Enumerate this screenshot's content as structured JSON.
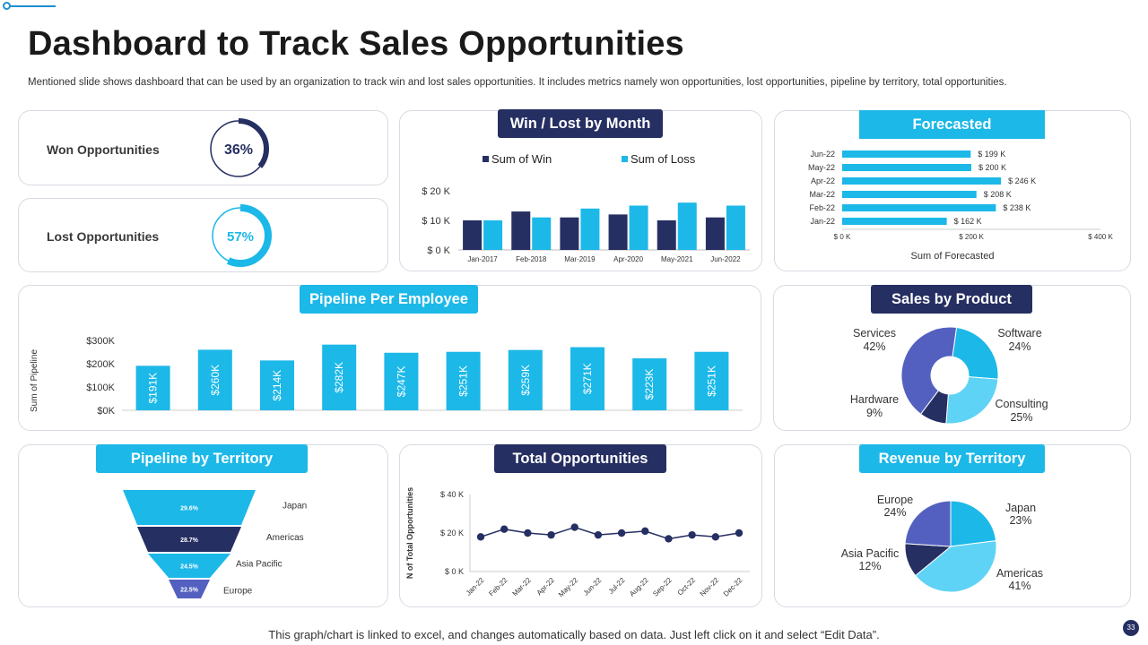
{
  "page": {
    "title": "Dashboard to Track Sales Opportunities",
    "subtitle": "Mentioned slide shows dashboard that can be used by an organization to track win and lost sales opportunities. It includes metrics namely won opportunities, lost opportunities, pipeline by territory, total opportunities.",
    "footer": "This graph/chart is linked to excel, and changes automatically based on data. Just left click on it and select “Edit Data”.",
    "page_number": "33"
  },
  "colors": {
    "navy": "#262f62",
    "cyan": "#1cb8e8",
    "light_cyan": "#5fd3f5",
    "slate": "#5360c0"
  },
  "kpis": {
    "won": {
      "label": "Won Opportunities",
      "value": "36%",
      "fraction": 0.36
    },
    "lost": {
      "label": "Lost Opportunities",
      "value": "57%",
      "fraction": 0.57
    }
  },
  "chart_data": [
    {
      "id": "win-loss",
      "type": "bar",
      "title": "Win / Lost by Month",
      "categories": [
        "Jan-2017",
        "Feb-2018",
        "Mar-2019",
        "Apr-2020",
        "May-2021",
        "Jun-2022"
      ],
      "series": [
        {
          "name": "Sum of Win",
          "values": [
            10,
            13,
            11,
            12,
            10,
            11
          ]
        },
        {
          "name": "Sum of Loss",
          "values": [
            10,
            11,
            14,
            15,
            16,
            15
          ]
        }
      ],
      "ylim": [
        0,
        20
      ],
      "yticks": [
        "$ 0 K",
        "$ 10 K",
        "$ 20 K"
      ],
      "legend": "top"
    },
    {
      "id": "forecasted",
      "type": "bar-horizontal",
      "title": "Forecasted",
      "categories": [
        "Jun-22",
        "May-22",
        "Apr-22",
        "Mar-22",
        "Feb-22",
        "Jan-22"
      ],
      "values": [
        199,
        200,
        246,
        208,
        238,
        162
      ],
      "labels": [
        "$ 199 K",
        "$ 200 K",
        "$ 246 K",
        "$ 208 K",
        "$ 238 K",
        "$ 162 K"
      ],
      "xlim": [
        0,
        400
      ],
      "xticks": [
        "$ 0 K",
        "$ 200 K",
        "$ 400 K"
      ],
      "xlabel": "Sum of Forecasted"
    },
    {
      "id": "pipeline-employee",
      "type": "bar",
      "title": "Pipeline Per Employee",
      "values": [
        191,
        260,
        214,
        282,
        247,
        251,
        259,
        271,
        223,
        251
      ],
      "labels": [
        "$191K",
        "$260K",
        "$214K",
        "$282K",
        "$247K",
        "$251K",
        "$259K",
        "$271K",
        "$223K",
        "$251K"
      ],
      "ylim": [
        0,
        300
      ],
      "yticks": [
        "$0K",
        "$100K",
        "$200K",
        "$300K"
      ],
      "ylabel": "Sum of Pipeline"
    },
    {
      "id": "sales-product",
      "type": "pie",
      "title": "Sales by Product",
      "donut": true,
      "slices": [
        {
          "name": "Software",
          "value": 24,
          "label": "24%"
        },
        {
          "name": "Consulting",
          "value": 25,
          "label": "25%"
        },
        {
          "name": "Hardware",
          "value": 9,
          "label": "9%"
        },
        {
          "name": "Services",
          "value": 42,
          "label": "42%"
        }
      ]
    },
    {
      "id": "pipeline-territory",
      "type": "funnel",
      "title": "Pipeline by Territory",
      "stages": [
        {
          "name": "Japan",
          "value": 29.6,
          "label": "29.6%"
        },
        {
          "name": "Americas",
          "value": 28.7,
          "label": "28.7%"
        },
        {
          "name": "Asia Pacific",
          "value": 24.5,
          "label": "24.5%"
        },
        {
          "name": "Europe",
          "value": 22.5,
          "label": "22.5%"
        }
      ]
    },
    {
      "id": "total-opportunities",
      "type": "line",
      "title": "Total Opportunities",
      "categories": [
        "Jan-22",
        "Feb-22",
        "Mar-22",
        "Apr-22",
        "May-22",
        "Jun-22",
        "Jul-22",
        "Aug-22",
        "Sep-22",
        "Oct-22",
        "Nov-22",
        "Dec-22"
      ],
      "values": [
        18,
        22,
        20,
        19,
        23,
        19,
        20,
        21,
        17,
        19,
        18,
        20
      ],
      "ylim": [
        0,
        40
      ],
      "yticks": [
        "$ 0 K",
        "$ 20 K",
        "$ 40 K"
      ],
      "ylabel": "N of Total Opportunities"
    },
    {
      "id": "revenue-territory",
      "type": "pie",
      "title": "Revenue by Territory",
      "donut": false,
      "slices": [
        {
          "name": "Japan",
          "value": 23,
          "label": "23%"
        },
        {
          "name": "Americas",
          "value": 41,
          "label": "41%"
        },
        {
          "name": "Asia Pacific",
          "value": 12,
          "label": "12%"
        },
        {
          "name": "Europe",
          "value": 24,
          "label": "24%"
        }
      ]
    }
  ]
}
